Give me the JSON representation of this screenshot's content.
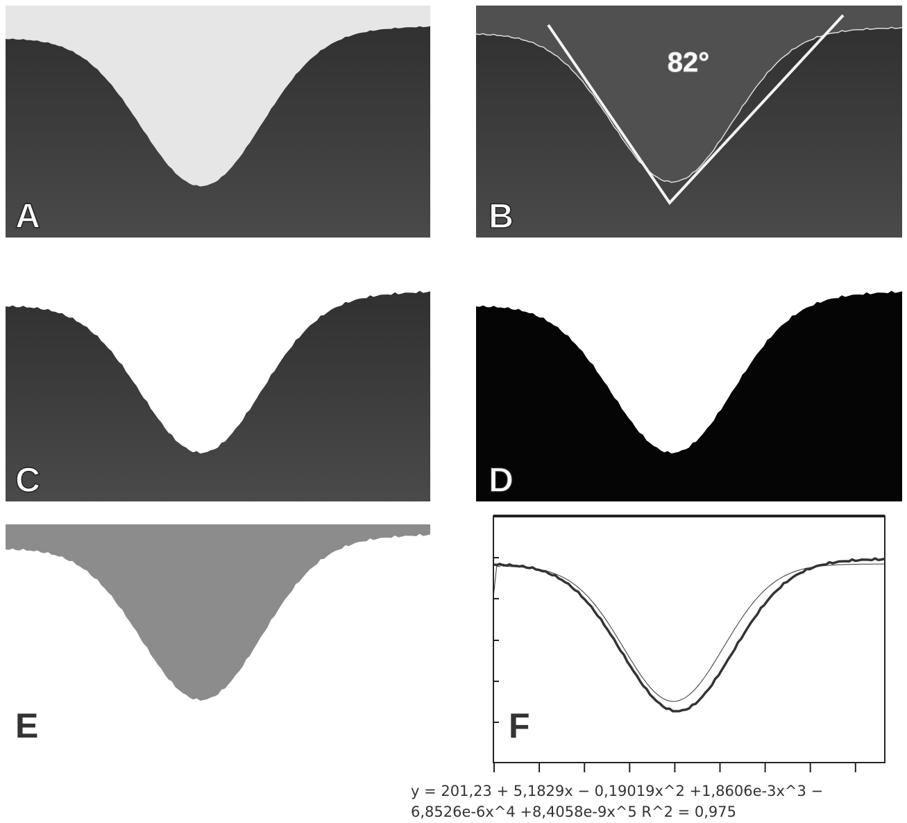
{
  "panels": [
    {
      "label": "A"
    },
    {
      "label": "B",
      "annotation": "82°"
    },
    {
      "label": "C"
    },
    {
      "label": "D"
    },
    {
      "label": "E"
    },
    {
      "label": "F",
      "equation": [
        "y = 201,23 + 5,1829x − 0,19019x^2 +1,8606e-3x^3 −",
        "6,8526e-6x^4 +8,4058e-9x^5   R^2 = 0,975"
      ]
    }
  ]
}
